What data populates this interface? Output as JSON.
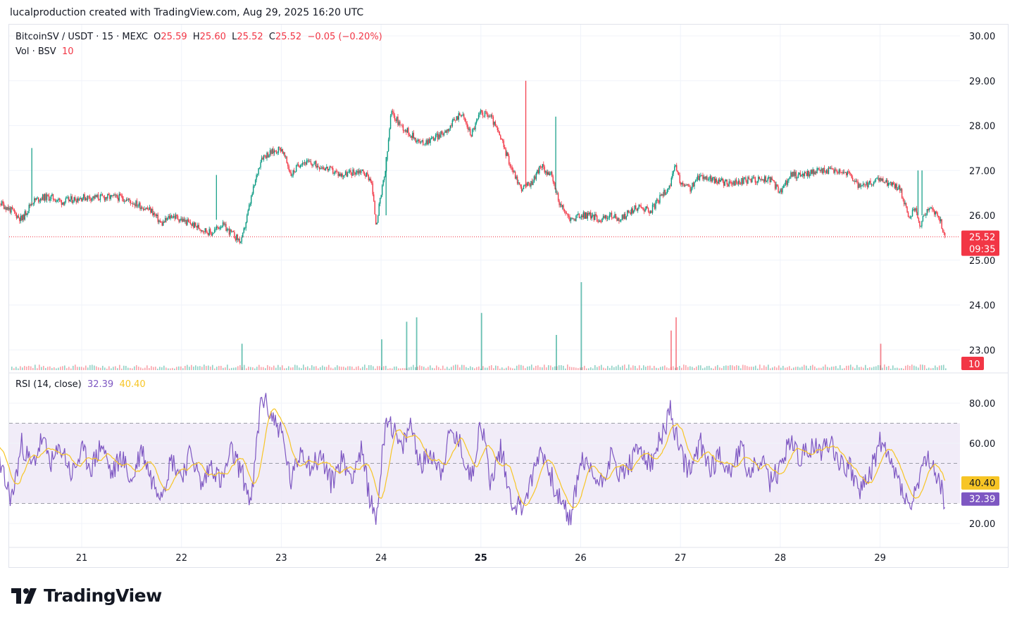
{
  "caption": "lucalproduction created with TradingView.com, Aug 29, 2025 16:20 UTC",
  "legend": {
    "symbol": "BitcoinSV / USDT · 15 · MEXC",
    "o_label": "O",
    "o_value": "25.59",
    "h_label": "H",
    "h_value": "25.60",
    "l_label": "L",
    "l_value": "25.52",
    "c_label": "C",
    "c_value": "25.52",
    "change": "−0.05 (−0.20%)",
    "vol_label": "Vol · BSV",
    "vol_value": "10"
  },
  "rsi_legend": {
    "label": "RSI (14, close)",
    "rsi_value": "32.39",
    "ma_value": "40.40"
  },
  "brand": "TradingView",
  "colors": {
    "up": "#089981",
    "down": "#f23645",
    "rsi": "#7e57c2",
    "rsi_ma": "#f7c525",
    "band_fill": "#ede7f6",
    "grid": "#f0f3fa"
  },
  "chart_data": {
    "type": "candlestick",
    "price_axis": {
      "ticks": [
        "30.00",
        "29.00",
        "28.00",
        "27.00",
        "26.00",
        "25.00",
        "24.00",
        "23.00"
      ],
      "range": [
        22.5,
        30.5
      ]
    },
    "x_ticks": [
      "21",
      "22",
      "23",
      "24",
      "25",
      "26",
      "27",
      "28",
      "29"
    ],
    "bold_tick": "25",
    "last_price": "25.52",
    "countdown": "09:35",
    "last_volume": "10",
    "price_path": [
      [
        20.0,
        26.1
      ],
      [
        20.1,
        26.4
      ],
      [
        20.3,
        26.1
      ],
      [
        20.4,
        25.9
      ],
      [
        20.5,
        26.3
      ],
      [
        20.6,
        26.4
      ],
      [
        20.7,
        26.4
      ],
      [
        20.8,
        26.3
      ],
      [
        21.0,
        26.4
      ],
      [
        21.2,
        26.4
      ],
      [
        21.4,
        26.4
      ],
      [
        21.5,
        26.3
      ],
      [
        21.6,
        26.2
      ],
      [
        21.7,
        26.1
      ],
      [
        21.8,
        25.8
      ],
      [
        21.9,
        26.0
      ],
      [
        22.0,
        25.9
      ],
      [
        22.1,
        25.8
      ],
      [
        22.2,
        25.7
      ],
      [
        22.3,
        25.6
      ],
      [
        22.4,
        25.8
      ],
      [
        22.5,
        25.6
      ],
      [
        22.6,
        25.4
      ],
      [
        22.7,
        26.4
      ],
      [
        22.8,
        27.3
      ],
      [
        22.9,
        27.4
      ],
      [
        23.0,
        27.5
      ],
      [
        23.1,
        26.9
      ],
      [
        23.2,
        27.2
      ],
      [
        23.4,
        27.1
      ],
      [
        23.6,
        26.9
      ],
      [
        23.8,
        27.0
      ],
      [
        23.9,
        26.8
      ],
      [
        23.95,
        25.8
      ],
      [
        24.05,
        27.1
      ],
      [
        24.1,
        28.3
      ],
      [
        24.2,
        28.0
      ],
      [
        24.3,
        27.8
      ],
      [
        24.4,
        27.6
      ],
      [
        24.5,
        27.7
      ],
      [
        24.6,
        27.8
      ],
      [
        24.7,
        28.0
      ],
      [
        24.8,
        28.3
      ],
      [
        24.9,
        27.8
      ],
      [
        25.0,
        28.3
      ],
      [
        25.1,
        28.2
      ],
      [
        25.2,
        27.7
      ],
      [
        25.3,
        27.1
      ],
      [
        25.4,
        26.6
      ],
      [
        25.5,
        26.7
      ],
      [
        25.6,
        27.1
      ],
      [
        25.7,
        26.9
      ],
      [
        25.8,
        26.2
      ],
      [
        25.9,
        25.9
      ],
      [
        26.0,
        26.0
      ],
      [
        26.1,
        26.0
      ],
      [
        26.2,
        25.9
      ],
      [
        26.3,
        26.0
      ],
      [
        26.4,
        25.9
      ],
      [
        26.5,
        26.1
      ],
      [
        26.6,
        26.2
      ],
      [
        26.7,
        26.1
      ],
      [
        26.8,
        26.4
      ],
      [
        26.9,
        26.7
      ],
      [
        26.95,
        27.1
      ],
      [
        27.0,
        26.7
      ],
      [
        27.1,
        26.6
      ],
      [
        27.2,
        26.9
      ],
      [
        27.3,
        26.8
      ],
      [
        27.5,
        26.7
      ],
      [
        27.7,
        26.8
      ],
      [
        27.9,
        26.8
      ],
      [
        28.0,
        26.5
      ],
      [
        28.1,
        26.9
      ],
      [
        28.2,
        26.9
      ],
      [
        28.4,
        27.0
      ],
      [
        28.6,
        27.0
      ],
      [
        28.7,
        26.9
      ],
      [
        28.8,
        26.6
      ],
      [
        28.9,
        26.7
      ],
      [
        29.0,
        26.8
      ],
      [
        29.1,
        26.7
      ],
      [
        29.2,
        26.6
      ],
      [
        29.3,
        25.9
      ],
      [
        29.35,
        26.2
      ],
      [
        29.4,
        25.8
      ],
      [
        29.5,
        26.2
      ],
      [
        29.6,
        25.9
      ],
      [
        29.65,
        25.52
      ]
    ],
    "wicks": [
      [
        20.5,
        26.3,
        27.5
      ],
      [
        22.35,
        25.9,
        26.9
      ],
      [
        24.05,
        26.0,
        27.3
      ],
      [
        25.45,
        26.6,
        29.0
      ],
      [
        25.75,
        26.5,
        28.2
      ],
      [
        29.38,
        26.0,
        27.0
      ],
      [
        29.42,
        26.0,
        27.0
      ]
    ],
    "volume_spikes": [
      [
        22.6,
        0.3
      ],
      [
        24.0,
        0.35
      ],
      [
        24.25,
        0.55
      ],
      [
        24.35,
        0.6
      ],
      [
        25.0,
        0.65
      ],
      [
        25.75,
        0.4
      ],
      [
        26.0,
        1.0
      ],
      [
        26.95,
        0.6
      ],
      [
        26.9,
        0.45
      ],
      [
        29.0,
        0.3
      ]
    ],
    "rsi": {
      "axis_ticks": [
        "80.00",
        "60.00",
        "20.00"
      ],
      "upper_band": 70,
      "middle_band": 50,
      "lower_band": 30,
      "last_rsi": "32.39",
      "last_ma": "40.40",
      "path": [
        [
          20.0,
          50
        ],
        [
          20.1,
          64
        ],
        [
          20.2,
          45
        ],
        [
          20.3,
          32
        ],
        [
          20.4,
          60
        ],
        [
          20.5,
          48
        ],
        [
          20.6,
          62
        ],
        [
          20.7,
          50
        ],
        [
          20.8,
          58
        ],
        [
          20.9,
          44
        ],
        [
          21.0,
          56
        ],
        [
          21.1,
          48
        ],
        [
          21.2,
          60
        ],
        [
          21.3,
          44
        ],
        [
          21.4,
          54
        ],
        [
          21.5,
          40
        ],
        [
          21.6,
          58
        ],
        [
          21.7,
          42
        ],
        [
          21.8,
          36
        ],
        [
          21.9,
          52
        ],
        [
          22.0,
          44
        ],
        [
          22.1,
          56
        ],
        [
          22.2,
          38
        ],
        [
          22.3,
          50
        ],
        [
          22.4,
          40
        ],
        [
          22.5,
          56
        ],
        [
          22.6,
          46
        ],
        [
          22.7,
          30
        ],
        [
          22.8,
          84
        ],
        [
          22.9,
          74
        ],
        [
          23.0,
          66
        ],
        [
          23.1,
          40
        ],
        [
          23.2,
          58
        ],
        [
          23.3,
          48
        ],
        [
          23.4,
          54
        ],
        [
          23.5,
          40
        ],
        [
          23.6,
          52
        ],
        [
          23.7,
          44
        ],
        [
          23.8,
          56
        ],
        [
          23.9,
          30
        ],
        [
          23.95,
          22
        ],
        [
          24.05,
          74
        ],
        [
          24.1,
          70
        ],
        [
          24.2,
          56
        ],
        [
          24.3,
          70
        ],
        [
          24.4,
          48
        ],
        [
          24.5,
          56
        ],
        [
          24.6,
          46
        ],
        [
          24.7,
          66
        ],
        [
          24.8,
          58
        ],
        [
          24.9,
          42
        ],
        [
          25.0,
          72
        ],
        [
          25.1,
          40
        ],
        [
          25.2,
          58
        ],
        [
          25.3,
          32
        ],
        [
          25.4,
          28
        ],
        [
          25.5,
          40
        ],
        [
          25.6,
          58
        ],
        [
          25.7,
          44
        ],
        [
          25.8,
          30
        ],
        [
          25.9,
          22
        ],
        [
          26.0,
          52
        ],
        [
          26.1,
          46
        ],
        [
          26.2,
          40
        ],
        [
          26.3,
          54
        ],
        [
          26.4,
          44
        ],
        [
          26.5,
          50
        ],
        [
          26.6,
          58
        ],
        [
          26.7,
          48
        ],
        [
          26.8,
          62
        ],
        [
          26.9,
          76
        ],
        [
          27.0,
          54
        ],
        [
          27.1,
          46
        ],
        [
          27.2,
          60
        ],
        [
          27.3,
          48
        ],
        [
          27.4,
          54
        ],
        [
          27.5,
          46
        ],
        [
          27.6,
          58
        ],
        [
          27.7,
          44
        ],
        [
          27.8,
          52
        ],
        [
          27.9,
          40
        ],
        [
          28.0,
          48
        ],
        [
          28.1,
          62
        ],
        [
          28.2,
          52
        ],
        [
          28.3,
          58
        ],
        [
          28.4,
          56
        ],
        [
          28.5,
          62
        ],
        [
          28.6,
          50
        ],
        [
          28.7,
          48
        ],
        [
          28.8,
          36
        ],
        [
          28.9,
          44
        ],
        [
          29.0,
          62
        ],
        [
          29.1,
          50
        ],
        [
          29.2,
          40
        ],
        [
          29.3,
          26
        ],
        [
          29.4,
          44
        ],
        [
          29.5,
          52
        ],
        [
          29.6,
          38
        ],
        [
          29.65,
          32
        ]
      ]
    }
  }
}
